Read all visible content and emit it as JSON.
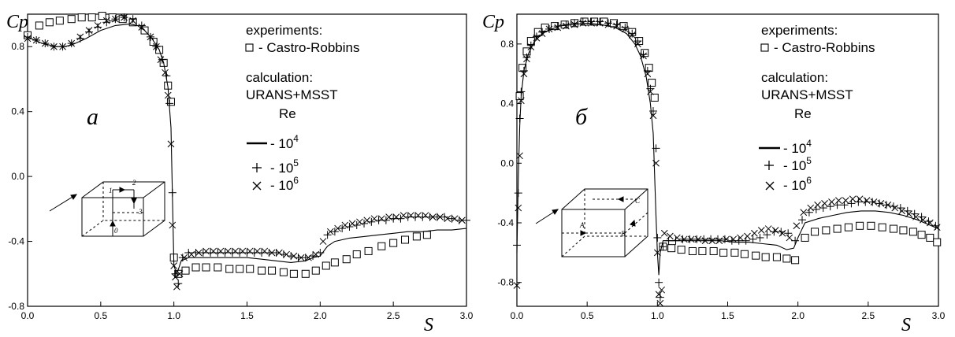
{
  "chart_data": [
    {
      "type": "line",
      "ylabel": "Cp",
      "xlabel": "S",
      "panel_label": "a",
      "xlim": [
        0.0,
        3.0
      ],
      "ylim": [
        -0.8,
        1.0
      ],
      "xticks": [
        "0.0",
        "0.5",
        "1.0",
        "1.5",
        "2.0",
        "2.5",
        "3.0"
      ],
      "yticks": [
        "-0.8",
        "-0.4",
        "0.0",
        "0.4",
        "0.8"
      ],
      "legend": {
        "experiments_header": "experiments:",
        "experiment_entry": "- Castro-Robbins",
        "calculation_header": "calculation:",
        "model": "URANS+MSST",
        "re_header": "Re",
        "entries": [
          {
            "prefix": "- 10",
            "exp": "4"
          },
          {
            "prefix": "- 10",
            "exp": "5"
          },
          {
            "prefix": "- 10",
            "exp": "6"
          }
        ]
      },
      "inset_labels": [
        "0",
        "1",
        "2",
        "3"
      ],
      "series": [
        {
          "name": "Castro-Robbins",
          "marker": "square",
          "x": [
            0.0,
            0.08,
            0.15,
            0.22,
            0.3,
            0.37,
            0.44,
            0.51,
            0.58,
            0.65,
            0.72,
            0.8,
            0.86,
            0.9,
            0.93,
            0.96,
            0.98,
            1.0,
            1.03,
            1.08,
            1.15,
            1.22,
            1.3,
            1.38,
            1.45,
            1.52,
            1.6,
            1.67,
            1.75,
            1.82,
            1.9,
            1.97,
            2.04,
            2.1,
            2.18,
            2.25,
            2.33,
            2.42,
            2.5,
            2.58,
            2.66,
            2.73
          ],
          "y": [
            0.87,
            0.93,
            0.95,
            0.96,
            0.97,
            0.98,
            0.98,
            0.99,
            0.98,
            0.97,
            0.95,
            0.9,
            0.83,
            0.78,
            0.7,
            0.56,
            0.46,
            -0.5,
            -0.6,
            -0.58,
            -0.56,
            -0.56,
            -0.56,
            -0.57,
            -0.57,
            -0.57,
            -0.58,
            -0.58,
            -0.59,
            -0.6,
            -0.6,
            -0.58,
            -0.55,
            -0.53,
            -0.51,
            -0.48,
            -0.46,
            -0.43,
            -0.41,
            -0.39,
            -0.37,
            -0.36
          ]
        },
        {
          "name": "10^4",
          "marker": "line",
          "x": [
            0.0,
            0.05,
            0.1,
            0.15,
            0.2,
            0.25,
            0.3,
            0.4,
            0.5,
            0.6,
            0.7,
            0.75,
            0.8,
            0.85,
            0.9,
            0.93,
            0.96,
            0.98,
            1.0,
            1.02,
            1.05,
            1.1,
            1.2,
            1.3,
            1.4,
            1.5,
            1.6,
            1.7,
            1.8,
            1.9,
            1.95,
            2.0,
            2.05,
            2.1,
            2.2,
            2.3,
            2.4,
            2.5,
            2.6,
            2.7,
            2.8,
            2.9,
            3.0
          ],
          "y": [
            0.86,
            0.84,
            0.82,
            0.81,
            0.8,
            0.8,
            0.81,
            0.85,
            0.9,
            0.93,
            0.94,
            0.93,
            0.9,
            0.85,
            0.78,
            0.7,
            0.55,
            0.3,
            -0.55,
            -0.6,
            -0.52,
            -0.5,
            -0.5,
            -0.5,
            -0.5,
            -0.5,
            -0.51,
            -0.52,
            -0.53,
            -0.52,
            -0.5,
            -0.49,
            -0.43,
            -0.4,
            -0.38,
            -0.37,
            -0.36,
            -0.35,
            -0.34,
            -0.34,
            -0.33,
            -0.33,
            -0.32
          ]
        },
        {
          "name": "10^5",
          "marker": "plus",
          "x": [
            0.0,
            0.06,
            0.12,
            0.18,
            0.24,
            0.3,
            0.36,
            0.42,
            0.48,
            0.54,
            0.6,
            0.66,
            0.72,
            0.78,
            0.84,
            0.88,
            0.92,
            0.95,
            0.97,
            0.99,
            1.01,
            1.03,
            1.06,
            1.1,
            1.15,
            1.2,
            1.25,
            1.3,
            1.35,
            1.4,
            1.45,
            1.5,
            1.55,
            1.6,
            1.65,
            1.7,
            1.75,
            1.8,
            1.85,
            1.9,
            1.95,
            2.0,
            2.05,
            2.1,
            2.15,
            2.2,
            2.25,
            2.3,
            2.35,
            2.4,
            2.45,
            2.5,
            2.55,
            2.6,
            2.65,
            2.7,
            2.75,
            2.8,
            2.85,
            2.9,
            2.95,
            3.0
          ],
          "y": [
            0.86,
            0.84,
            0.82,
            0.8,
            0.8,
            0.82,
            0.85,
            0.89,
            0.92,
            0.95,
            0.97,
            0.98,
            0.97,
            0.93,
            0.86,
            0.8,
            0.72,
            0.62,
            0.45,
            -0.1,
            -0.6,
            -0.66,
            -0.5,
            -0.47,
            -0.47,
            -0.47,
            -0.47,
            -0.47,
            -0.47,
            -0.47,
            -0.47,
            -0.47,
            -0.47,
            -0.47,
            -0.47,
            -0.47,
            -0.48,
            -0.49,
            -0.5,
            -0.5,
            -0.49,
            -0.47,
            -0.36,
            -0.34,
            -0.32,
            -0.31,
            -0.3,
            -0.29,
            -0.28,
            -0.27,
            -0.27,
            -0.26,
            -0.26,
            -0.25,
            -0.25,
            -0.25,
            -0.25,
            -0.25,
            -0.25,
            -0.26,
            -0.27,
            -0.27
          ]
        },
        {
          "name": "10^6",
          "marker": "cross",
          "x": [
            0.0,
            0.06,
            0.12,
            0.18,
            0.24,
            0.3,
            0.36,
            0.42,
            0.48,
            0.54,
            0.6,
            0.66,
            0.72,
            0.78,
            0.84,
            0.88,
            0.91,
            0.94,
            0.96,
            0.98,
            0.99,
            1.0,
            1.01,
            1.02,
            1.04,
            1.07,
            1.12,
            1.17,
            1.22,
            1.27,
            1.32,
            1.37,
            1.42,
            1.47,
            1.52,
            1.57,
            1.62,
            1.67,
            1.72,
            1.77,
            1.82,
            1.87,
            1.92,
            1.97,
            2.02,
            2.07,
            2.12,
            2.17,
            2.22,
            2.27,
            2.32,
            2.37,
            2.42,
            2.47,
            2.52,
            2.57,
            2.62,
            2.67,
            2.72,
            2.77,
            2.82,
            2.87,
            2.92,
            2.97
          ],
          "y": [
            0.85,
            0.84,
            0.82,
            0.8,
            0.8,
            0.82,
            0.86,
            0.9,
            0.93,
            0.96,
            0.97,
            0.98,
            0.96,
            0.92,
            0.86,
            0.8,
            0.72,
            0.64,
            0.5,
            0.2,
            -0.3,
            -0.55,
            -0.62,
            -0.68,
            -0.6,
            -0.5,
            -0.48,
            -0.47,
            -0.46,
            -0.46,
            -0.46,
            -0.46,
            -0.46,
            -0.46,
            -0.46,
            -0.46,
            -0.46,
            -0.47,
            -0.47,
            -0.48,
            -0.49,
            -0.5,
            -0.5,
            -0.48,
            -0.4,
            -0.34,
            -0.32,
            -0.3,
            -0.29,
            -0.28,
            -0.27,
            -0.26,
            -0.26,
            -0.25,
            -0.25,
            -0.24,
            -0.24,
            -0.24,
            -0.24,
            -0.25,
            -0.25,
            -0.26,
            -0.26,
            -0.27
          ]
        }
      ]
    },
    {
      "type": "line",
      "ylabel": "Cp",
      "xlabel": "S",
      "panel_label": "б",
      "xlim": [
        0.0,
        3.0
      ],
      "ylim": [
        -0.96,
        1.0
      ],
      "xticks": [
        "0.0",
        "0.5",
        "1.0",
        "1.5",
        "2.0",
        "2.5",
        "3.0"
      ],
      "yticks": [
        "-0.8",
        "-0.4",
        "0.0",
        "0.4",
        "0.8"
      ],
      "legend": {
        "experiments_header": "experiments:",
        "experiment_entry": "- Castro-Robbins",
        "calculation_header": "calculation:",
        "model": "URANS+MSST",
        "re_header": "Re",
        "entries": [
          {
            "prefix": "- 10",
            "exp": "4"
          },
          {
            "prefix": "- 10",
            "exp": "5"
          },
          {
            "prefix": "- 10",
            "exp": "6"
          }
        ]
      },
      "inset_labels": [
        "A",
        "B",
        "C"
      ],
      "series": [
        {
          "name": "Castro-Robbins",
          "marker": "square",
          "x": [
            0.02,
            0.04,
            0.07,
            0.1,
            0.15,
            0.2,
            0.27,
            0.34,
            0.41,
            0.48,
            0.55,
            0.62,
            0.69,
            0.76,
            0.82,
            0.87,
            0.91,
            0.94,
            0.96,
            0.98,
            1.04,
            1.1,
            1.17,
            1.25,
            1.32,
            1.4,
            1.47,
            1.55,
            1.62,
            1.7,
            1.77,
            1.85,
            1.92,
            1.98,
            2.05,
            2.12,
            2.2,
            2.28,
            2.36,
            2.44,
            2.52,
            2.6,
            2.68,
            2.75,
            2.82,
            2.88,
            2.94,
            2.99
          ],
          "y": [
            0.45,
            0.64,
            0.75,
            0.82,
            0.88,
            0.91,
            0.92,
            0.93,
            0.94,
            0.95,
            0.95,
            0.95,
            0.94,
            0.92,
            0.88,
            0.82,
            0.74,
            0.64,
            0.54,
            0.44,
            -0.56,
            -0.57,
            -0.58,
            -0.59,
            -0.59,
            -0.59,
            -0.6,
            -0.6,
            -0.61,
            -0.62,
            -0.63,
            -0.63,
            -0.64,
            -0.65,
            -0.5,
            -0.46,
            -0.45,
            -0.44,
            -0.43,
            -0.42,
            -0.42,
            -0.43,
            -0.44,
            -0.45,
            -0.46,
            -0.48,
            -0.5,
            -0.53
          ]
        },
        {
          "name": "10^4",
          "marker": "line",
          "x": [
            0.0,
            0.01,
            0.02,
            0.03,
            0.05,
            0.08,
            0.12,
            0.16,
            0.2,
            0.3,
            0.4,
            0.5,
            0.6,
            0.7,
            0.78,
            0.84,
            0.88,
            0.92,
            0.95,
            0.97,
            0.99,
            1.0,
            1.01,
            1.02,
            1.04,
            1.08,
            1.15,
            1.25,
            1.35,
            1.45,
            1.55,
            1.65,
            1.75,
            1.85,
            1.92,
            1.97,
            2.0,
            2.05,
            2.15,
            2.25,
            2.35,
            2.45,
            2.55,
            2.65,
            2.75,
            2.85,
            2.95,
            3.0
          ],
          "y": [
            -0.6,
            -0.1,
            0.25,
            0.45,
            0.62,
            0.73,
            0.81,
            0.85,
            0.88,
            0.92,
            0.93,
            0.94,
            0.93,
            0.91,
            0.87,
            0.8,
            0.72,
            0.58,
            0.4,
            0.2,
            -0.35,
            -0.6,
            -0.75,
            -0.6,
            -0.52,
            -0.52,
            -0.52,
            -0.52,
            -0.52,
            -0.52,
            -0.53,
            -0.53,
            -0.54,
            -0.55,
            -0.58,
            -0.57,
            -0.5,
            -0.4,
            -0.37,
            -0.35,
            -0.33,
            -0.32,
            -0.32,
            -0.33,
            -0.35,
            -0.38,
            -0.42,
            -0.44
          ]
        },
        {
          "name": "10^5",
          "marker": "plus",
          "x": [
            0.0,
            0.01,
            0.02,
            0.03,
            0.05,
            0.07,
            0.1,
            0.14,
            0.18,
            0.23,
            0.29,
            0.35,
            0.41,
            0.47,
            0.53,
            0.59,
            0.65,
            0.71,
            0.77,
            0.82,
            0.86,
            0.9,
            0.93,
            0.95,
            0.97,
            0.99,
            1.0,
            1.01,
            1.02,
            1.04,
            1.08,
            1.13,
            1.18,
            1.23,
            1.28,
            1.33,
            1.38,
            1.43,
            1.48,
            1.53,
            1.58,
            1.63,
            1.68,
            1.73,
            1.78,
            1.83,
            1.88,
            1.93,
            1.98,
            2.03,
            2.08,
            2.13,
            2.18,
            2.23,
            2.28,
            2.33,
            2.38,
            2.43,
            2.48,
            2.53,
            2.58,
            2.63,
            2.68,
            2.73,
            2.78,
            2.83,
            2.88,
            2.93,
            2.98
          ],
          "y": [
            -0.55,
            -0.2,
            0.3,
            0.48,
            0.62,
            0.71,
            0.79,
            0.85,
            0.88,
            0.9,
            0.92,
            0.93,
            0.94,
            0.95,
            0.95,
            0.95,
            0.94,
            0.93,
            0.91,
            0.87,
            0.82,
            0.73,
            0.62,
            0.5,
            0.35,
            0.1,
            -0.5,
            -0.8,
            -0.9,
            -0.56,
            -0.52,
            -0.52,
            -0.51,
            -0.51,
            -0.51,
            -0.51,
            -0.51,
            -0.51,
            -0.51,
            -0.52,
            -0.52,
            -0.52,
            -0.51,
            -0.5,
            -0.48,
            -0.46,
            -0.46,
            -0.47,
            -0.52,
            -0.38,
            -0.33,
            -0.31,
            -0.3,
            -0.29,
            -0.28,
            -0.28,
            -0.27,
            -0.26,
            -0.26,
            -0.26,
            -0.27,
            -0.28,
            -0.29,
            -0.3,
            -0.32,
            -0.34,
            -0.36,
            -0.39,
            -0.42
          ]
        },
        {
          "name": "10^6",
          "marker": "cross",
          "x": [
            0.0,
            0.01,
            0.02,
            0.03,
            0.05,
            0.07,
            0.1,
            0.14,
            0.18,
            0.23,
            0.29,
            0.35,
            0.41,
            0.47,
            0.53,
            0.59,
            0.65,
            0.71,
            0.77,
            0.82,
            0.86,
            0.9,
            0.93,
            0.95,
            0.97,
            0.99,
            1.0,
            1.01,
            1.02,
            1.03,
            1.05,
            1.09,
            1.14,
            1.19,
            1.24,
            1.29,
            1.34,
            1.39,
            1.44,
            1.49,
            1.54,
            1.59,
            1.64,
            1.69,
            1.74,
            1.79,
            1.84,
            1.89,
            1.94,
            1.99,
            2.04,
            2.09,
            2.14,
            2.19,
            2.24,
            2.29,
            2.34,
            2.39,
            2.44,
            2.49,
            2.54,
            2.59,
            2.64,
            2.69,
            2.74,
            2.79,
            2.84,
            2.89,
            2.94,
            2.99
          ],
          "y": [
            -0.82,
            -0.3,
            0.05,
            0.42,
            0.6,
            0.7,
            0.78,
            0.84,
            0.87,
            0.9,
            0.91,
            0.92,
            0.93,
            0.94,
            0.94,
            0.94,
            0.93,
            0.92,
            0.9,
            0.86,
            0.8,
            0.72,
            0.6,
            0.48,
            0.32,
            0.0,
            -0.6,
            -0.88,
            -0.94,
            -0.85,
            -0.47,
            -0.49,
            -0.5,
            -0.51,
            -0.51,
            -0.51,
            -0.52,
            -0.52,
            -0.52,
            -0.51,
            -0.51,
            -0.5,
            -0.49,
            -0.47,
            -0.45,
            -0.44,
            -0.45,
            -0.47,
            -0.5,
            -0.42,
            -0.33,
            -0.3,
            -0.28,
            -0.27,
            -0.26,
            -0.25,
            -0.25,
            -0.24,
            -0.24,
            -0.25,
            -0.26,
            -0.27,
            -0.28,
            -0.3,
            -0.32,
            -0.34,
            -0.36,
            -0.38,
            -0.4,
            -0.43
          ]
        }
      ]
    }
  ]
}
